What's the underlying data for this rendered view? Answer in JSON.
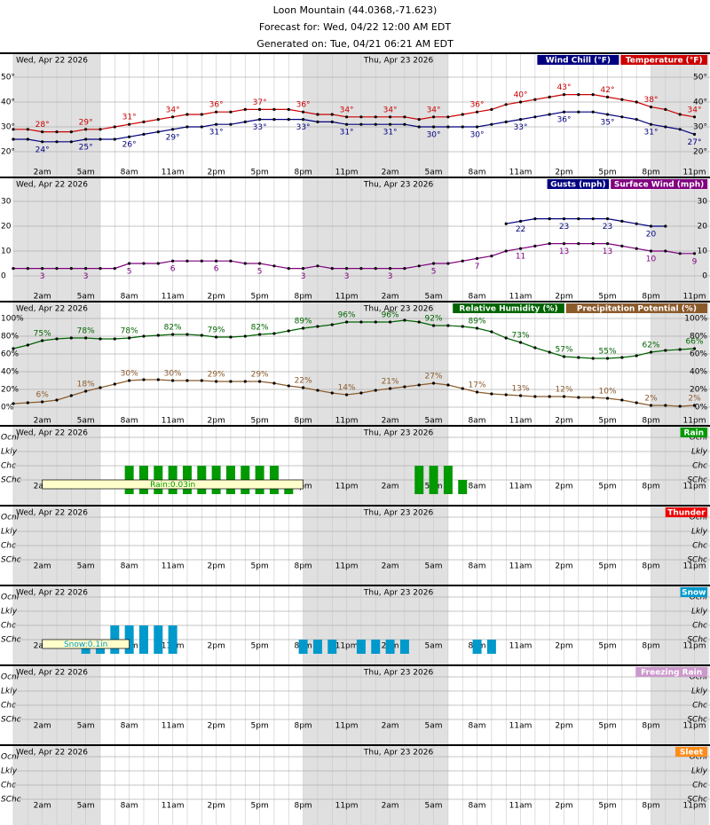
{
  "header": {
    "title": "Loon Mountain (44.0368,-71.623)",
    "forecast": "Forecast for: Wed, 04/22 12:00 AM EDT",
    "generated": "Generated on: Tue, 04/21 06:21 AM EDT"
  },
  "x_labels": [
    null,
    null,
    "2am",
    null,
    null,
    "5am",
    null,
    null,
    "8am",
    null,
    null,
    "11am",
    null,
    null,
    "2pm",
    null,
    null,
    "5pm",
    null,
    null,
    "8pm",
    null,
    null,
    "11pm",
    null,
    null,
    "2am",
    null,
    null,
    "5am",
    null,
    null,
    "8am",
    null,
    null,
    "11am",
    null,
    null,
    "2pm",
    null,
    null,
    "5pm",
    null,
    null,
    "8pm",
    null,
    null,
    "11pm"
  ],
  "days": [
    "Wed, Apr 22 2026",
    "Thu, Apr 23 2026"
  ],
  "night_hours": [
    [
      0,
      6
    ],
    [
      20,
      30
    ],
    [
      44,
      48
    ]
  ],
  "chart_data": [
    {
      "type": "line",
      "ylim": [
        15,
        55
      ],
      "yticks": [
        {
          "value": 20,
          "label": "20°"
        },
        {
          "value": 30,
          "label": "30°"
        },
        {
          "value": 40,
          "label": "40°"
        },
        {
          "value": 50,
          "label": "50°"
        }
      ],
      "series": [
        {
          "name": "Temperature (°F)",
          "color": "#cc0000",
          "label_side": "above",
          "values": [
            29,
            29,
            28,
            28,
            28,
            29,
            29,
            30,
            31,
            32,
            33,
            34,
            35,
            35,
            36,
            36,
            37,
            37,
            37,
            37,
            36,
            35,
            35,
            34,
            34,
            34,
            34,
            34,
            33,
            34,
            34,
            35,
            36,
            37,
            39,
            40,
            41,
            42,
            43,
            43,
            43,
            42,
            41,
            40,
            38,
            37,
            35,
            34
          ],
          "value_labels": [
            null,
            null,
            "28°",
            null,
            null,
            "29°",
            null,
            null,
            "31°",
            null,
            null,
            "34°",
            null,
            null,
            "36°",
            null,
            null,
            "37°",
            null,
            null,
            "36°",
            null,
            null,
            "34°",
            null,
            null,
            "34°",
            null,
            null,
            "34°",
            null,
            null,
            "36°",
            null,
            null,
            "40°",
            null,
            null,
            "43°",
            null,
            null,
            "42°",
            null,
            null,
            "38°",
            null,
            null,
            "34°"
          ]
        },
        {
          "name": "Wind Chill (°F)",
          "color": "#000080",
          "label_side": "below",
          "values": [
            25,
            25,
            24,
            24,
            24,
            25,
            25,
            25,
            26,
            27,
            28,
            29,
            30,
            30,
            31,
            31,
            32,
            33,
            33,
            33,
            33,
            32,
            32,
            31,
            31,
            31,
            31,
            31,
            30,
            30,
            30,
            30,
            30,
            31,
            32,
            33,
            34,
            35,
            36,
            36,
            36,
            35,
            34,
            33,
            31,
            30,
            29,
            27
          ],
          "value_labels": [
            null,
            null,
            "24°",
            null,
            null,
            "25°",
            null,
            null,
            "26°",
            null,
            null,
            "29°",
            null,
            null,
            "31°",
            null,
            null,
            "33°",
            null,
            null,
            "33°",
            null,
            null,
            "31°",
            null,
            null,
            "31°",
            null,
            null,
            "30°",
            null,
            null,
            "30°",
            null,
            null,
            "33°",
            null,
            null,
            "36°",
            null,
            null,
            "35°",
            null,
            null,
            "31°",
            null,
            null,
            "27°"
          ]
        }
      ]
    },
    {
      "type": "line",
      "ylim": [
        -5,
        35
      ],
      "yticks": [
        0,
        10,
        20,
        30
      ],
      "series": [
        {
          "name": "Surface Wind (mph)",
          "color": "#800080",
          "label_side": "below",
          "values": [
            3,
            3,
            3,
            3,
            3,
            3,
            3,
            3,
            5,
            5,
            5,
            6,
            6,
            6,
            6,
            6,
            5,
            5,
            4,
            3,
            3,
            4,
            3,
            3,
            3,
            3,
            3,
            3,
            4,
            5,
            5,
            6,
            7,
            8,
            10,
            11,
            12,
            13,
            13,
            13,
            13,
            13,
            12,
            11,
            10,
            10,
            9,
            9
          ],
          "value_labels": [
            null,
            null,
            "3",
            null,
            null,
            "3",
            null,
            null,
            "5",
            null,
            null,
            "6",
            null,
            null,
            "6",
            null,
            null,
            "5",
            null,
            null,
            "3",
            null,
            null,
            "3",
            null,
            null,
            "3",
            null,
            null,
            "5",
            null,
            null,
            "7",
            null,
            null,
            "11",
            null,
            null,
            "13",
            null,
            null,
            "13",
            null,
            null,
            "10",
            null,
            null,
            "9"
          ]
        },
        {
          "name": "Gusts (mph)",
          "color": "#000080",
          "label_side": "below",
          "values": [
            null,
            null,
            null,
            null,
            null,
            null,
            null,
            null,
            null,
            null,
            null,
            null,
            null,
            null,
            null,
            null,
            null,
            null,
            null,
            null,
            null,
            null,
            null,
            null,
            null,
            null,
            null,
            null,
            null,
            null,
            null,
            null,
            null,
            null,
            21,
            22,
            23,
            23,
            23,
            23,
            23,
            23,
            22,
            21,
            20,
            20,
            null,
            null
          ],
          "value_labels": [
            null,
            null,
            null,
            null,
            null,
            null,
            null,
            null,
            null,
            null,
            null,
            null,
            null,
            null,
            null,
            null,
            null,
            null,
            null,
            null,
            null,
            null,
            null,
            null,
            null,
            null,
            null,
            null,
            null,
            null,
            null,
            null,
            null,
            null,
            null,
            "22",
            null,
            null,
            "23",
            null,
            null,
            "23",
            null,
            null,
            "20",
            null,
            null,
            null
          ]
        }
      ]
    },
    {
      "type": "line",
      "ylim": [
        -6,
        106
      ],
      "yticks": [
        {
          "value": 0,
          "label": "0%"
        },
        {
          "value": 20,
          "label": "20%"
        },
        {
          "value": 40,
          "label": "40%"
        },
        {
          "value": 60,
          "label": "60%"
        },
        {
          "value": 80,
          "label": "80%"
        },
        {
          "value": 100,
          "label": "100%"
        }
      ],
      "series": [
        {
          "name": "Precipitation Potential (%)",
          "color": "#8b5a2b",
          "label_side": "above",
          "values": [
            4,
            5,
            6,
            8,
            13,
            18,
            22,
            26,
            30,
            31,
            31,
            30,
            30,
            30,
            29,
            29,
            29,
            29,
            27,
            24,
            22,
            19,
            16,
            14,
            16,
            19,
            21,
            23,
            25,
            27,
            25,
            21,
            17,
            15,
            14,
            13,
            12,
            12,
            12,
            11,
            11,
            10,
            8,
            5,
            2,
            2,
            1,
            2
          ],
          "value_labels": [
            null,
            null,
            "6%",
            null,
            null,
            "18%",
            null,
            null,
            "30%",
            null,
            null,
            "30%",
            null,
            null,
            "29%",
            null,
            null,
            "29%",
            null,
            null,
            "22%",
            null,
            null,
            "14%",
            null,
            null,
            "21%",
            null,
            null,
            "27%",
            null,
            null,
            "17%",
            null,
            null,
            "13%",
            null,
            null,
            "12%",
            null,
            null,
            "10%",
            null,
            null,
            "2%",
            null,
            null,
            "2%"
          ]
        },
        {
          "name": "Relative Humidity (%)",
          "color": "#006400",
          "label_side": "above",
          "values": [
            66,
            70,
            75,
            77,
            78,
            78,
            77,
            77,
            78,
            80,
            81,
            82,
            82,
            81,
            79,
            79,
            80,
            82,
            83,
            86,
            89,
            91,
            93,
            96,
            96,
            96,
            96,
            98,
            96,
            92,
            92,
            91,
            89,
            85,
            78,
            73,
            67,
            62,
            57,
            56,
            55,
            55,
            56,
            58,
            62,
            64,
            65,
            66
          ],
          "value_labels": [
            null,
            null,
            "75%",
            null,
            null,
            "78%",
            null,
            null,
            "78%",
            null,
            null,
            "82%",
            null,
            null,
            "79%",
            null,
            null,
            "82%",
            null,
            null,
            "89%",
            null,
            null,
            "96%",
            null,
            null,
            "96%",
            null,
            null,
            "92%",
            null,
            null,
            "89%",
            null,
            null,
            "73%",
            null,
            null,
            "57%",
            null,
            null,
            "55%",
            null,
            null,
            "62%",
            null,
            null,
            "66%"
          ]
        }
      ]
    },
    {
      "type": "bar",
      "ylim": [
        0,
        4
      ],
      "yticks": [
        {
          "value": 1,
          "label": "SChc"
        },
        {
          "value": 2,
          "label": "Chc"
        },
        {
          "value": 3,
          "label": "Lkly"
        },
        {
          "value": 4,
          "label": "Ocnl"
        }
      ],
      "series": [
        {
          "name": "Rain",
          "color": "#009900",
          "values": [
            0,
            0,
            0,
            0,
            0,
            0,
            0,
            0,
            2,
            2,
            2,
            2,
            2,
            2,
            2,
            2,
            2,
            2,
            2,
            1,
            0,
            0,
            0,
            0,
            0,
            0,
            0,
            0,
            2,
            2,
            2,
            1,
            0,
            0,
            0,
            0,
            0,
            0,
            0,
            0,
            0,
            0,
            0,
            0,
            0,
            0,
            0,
            0
          ]
        }
      ],
      "annotations": [
        {
          "text": "Rain:0.03in",
          "start": 2,
          "end": 20
        }
      ]
    },
    {
      "type": "bar",
      "ylim": [
        0,
        4
      ],
      "yticks": [
        {
          "value": 1,
          "label": "SChc"
        },
        {
          "value": 2,
          "label": "Chc"
        },
        {
          "value": 3,
          "label": "Lkly"
        },
        {
          "value": 4,
          "label": "Ocnl"
        }
      ],
      "series": [
        {
          "name": "Thunder",
          "color": "#ee0000",
          "values": [
            0,
            0,
            0,
            0,
            0,
            0,
            0,
            0,
            0,
            0,
            0,
            0,
            0,
            0,
            0,
            0,
            0,
            0,
            0,
            0,
            0,
            0,
            0,
            0,
            0,
            0,
            0,
            0,
            0,
            0,
            0,
            0,
            0,
            0,
            0,
            0,
            0,
            0,
            0,
            0,
            0,
            0,
            0,
            0,
            0,
            0,
            0,
            0
          ]
        }
      ]
    },
    {
      "type": "bar",
      "ylim": [
        0,
        4
      ],
      "yticks": [
        {
          "value": 1,
          "label": "SChc"
        },
        {
          "value": 2,
          "label": "Chc"
        },
        {
          "value": 3,
          "label": "Lkly"
        },
        {
          "value": 4,
          "label": "Ocnl"
        }
      ],
      "series": [
        {
          "name": "Snow",
          "color": "#0099cc",
          "values": [
            0,
            0,
            0,
            0,
            0,
            1,
            1,
            2,
            2,
            2,
            2,
            2,
            0,
            0,
            0,
            0,
            0,
            0,
            0,
            0,
            1,
            1,
            1,
            0,
            1,
            1,
            1,
            1,
            0,
            0,
            0,
            0,
            1,
            1,
            0,
            0,
            0,
            0,
            0,
            0,
            0,
            0,
            0,
            0,
            0,
            0,
            0,
            0
          ]
        }
      ],
      "annotations": [
        {
          "text": "Snow:0.1in",
          "start": 2,
          "end": 8
        }
      ]
    },
    {
      "type": "bar",
      "ylim": [
        0,
        4
      ],
      "yticks": [
        {
          "value": 1,
          "label": "SChc"
        },
        {
          "value": 2,
          "label": "Chc"
        },
        {
          "value": 3,
          "label": "Lkly"
        },
        {
          "value": 4,
          "label": "Ocnl"
        }
      ],
      "series": [
        {
          "name": "Freezing Rain",
          "color": "#cc99cc",
          "values": [
            0,
            0,
            0,
            0,
            0,
            0,
            0,
            0,
            0,
            0,
            0,
            0,
            0,
            0,
            0,
            0,
            0,
            0,
            0,
            0,
            0,
            0,
            0,
            0,
            0,
            0,
            0,
            0,
            0,
            0,
            0,
            0,
            0,
            0,
            0,
            0,
            0,
            0,
            0,
            0,
            0,
            0,
            0,
            0,
            0,
            0,
            0,
            0
          ]
        }
      ]
    },
    {
      "type": "bar",
      "ylim": [
        0,
        4
      ],
      "yticks": [
        {
          "value": 1,
          "label": "SChc"
        },
        {
          "value": 2,
          "label": "Chc"
        },
        {
          "value": 3,
          "label": "Lkly"
        },
        {
          "value": 4,
          "label": "Ocnl"
        }
      ],
      "series": [
        {
          "name": "Sleet",
          "color": "#ff8c1a",
          "values": [
            0,
            0,
            0,
            0,
            0,
            0,
            0,
            0,
            0,
            0,
            0,
            0,
            0,
            0,
            0,
            0,
            0,
            0,
            0,
            0,
            0,
            0,
            0,
            0,
            0,
            0,
            0,
            0,
            0,
            0,
            0,
            0,
            0,
            0,
            0,
            0,
            0,
            0,
            0,
            0,
            0,
            0,
            0,
            0,
            0,
            0,
            0,
            0
          ]
        }
      ]
    }
  ]
}
